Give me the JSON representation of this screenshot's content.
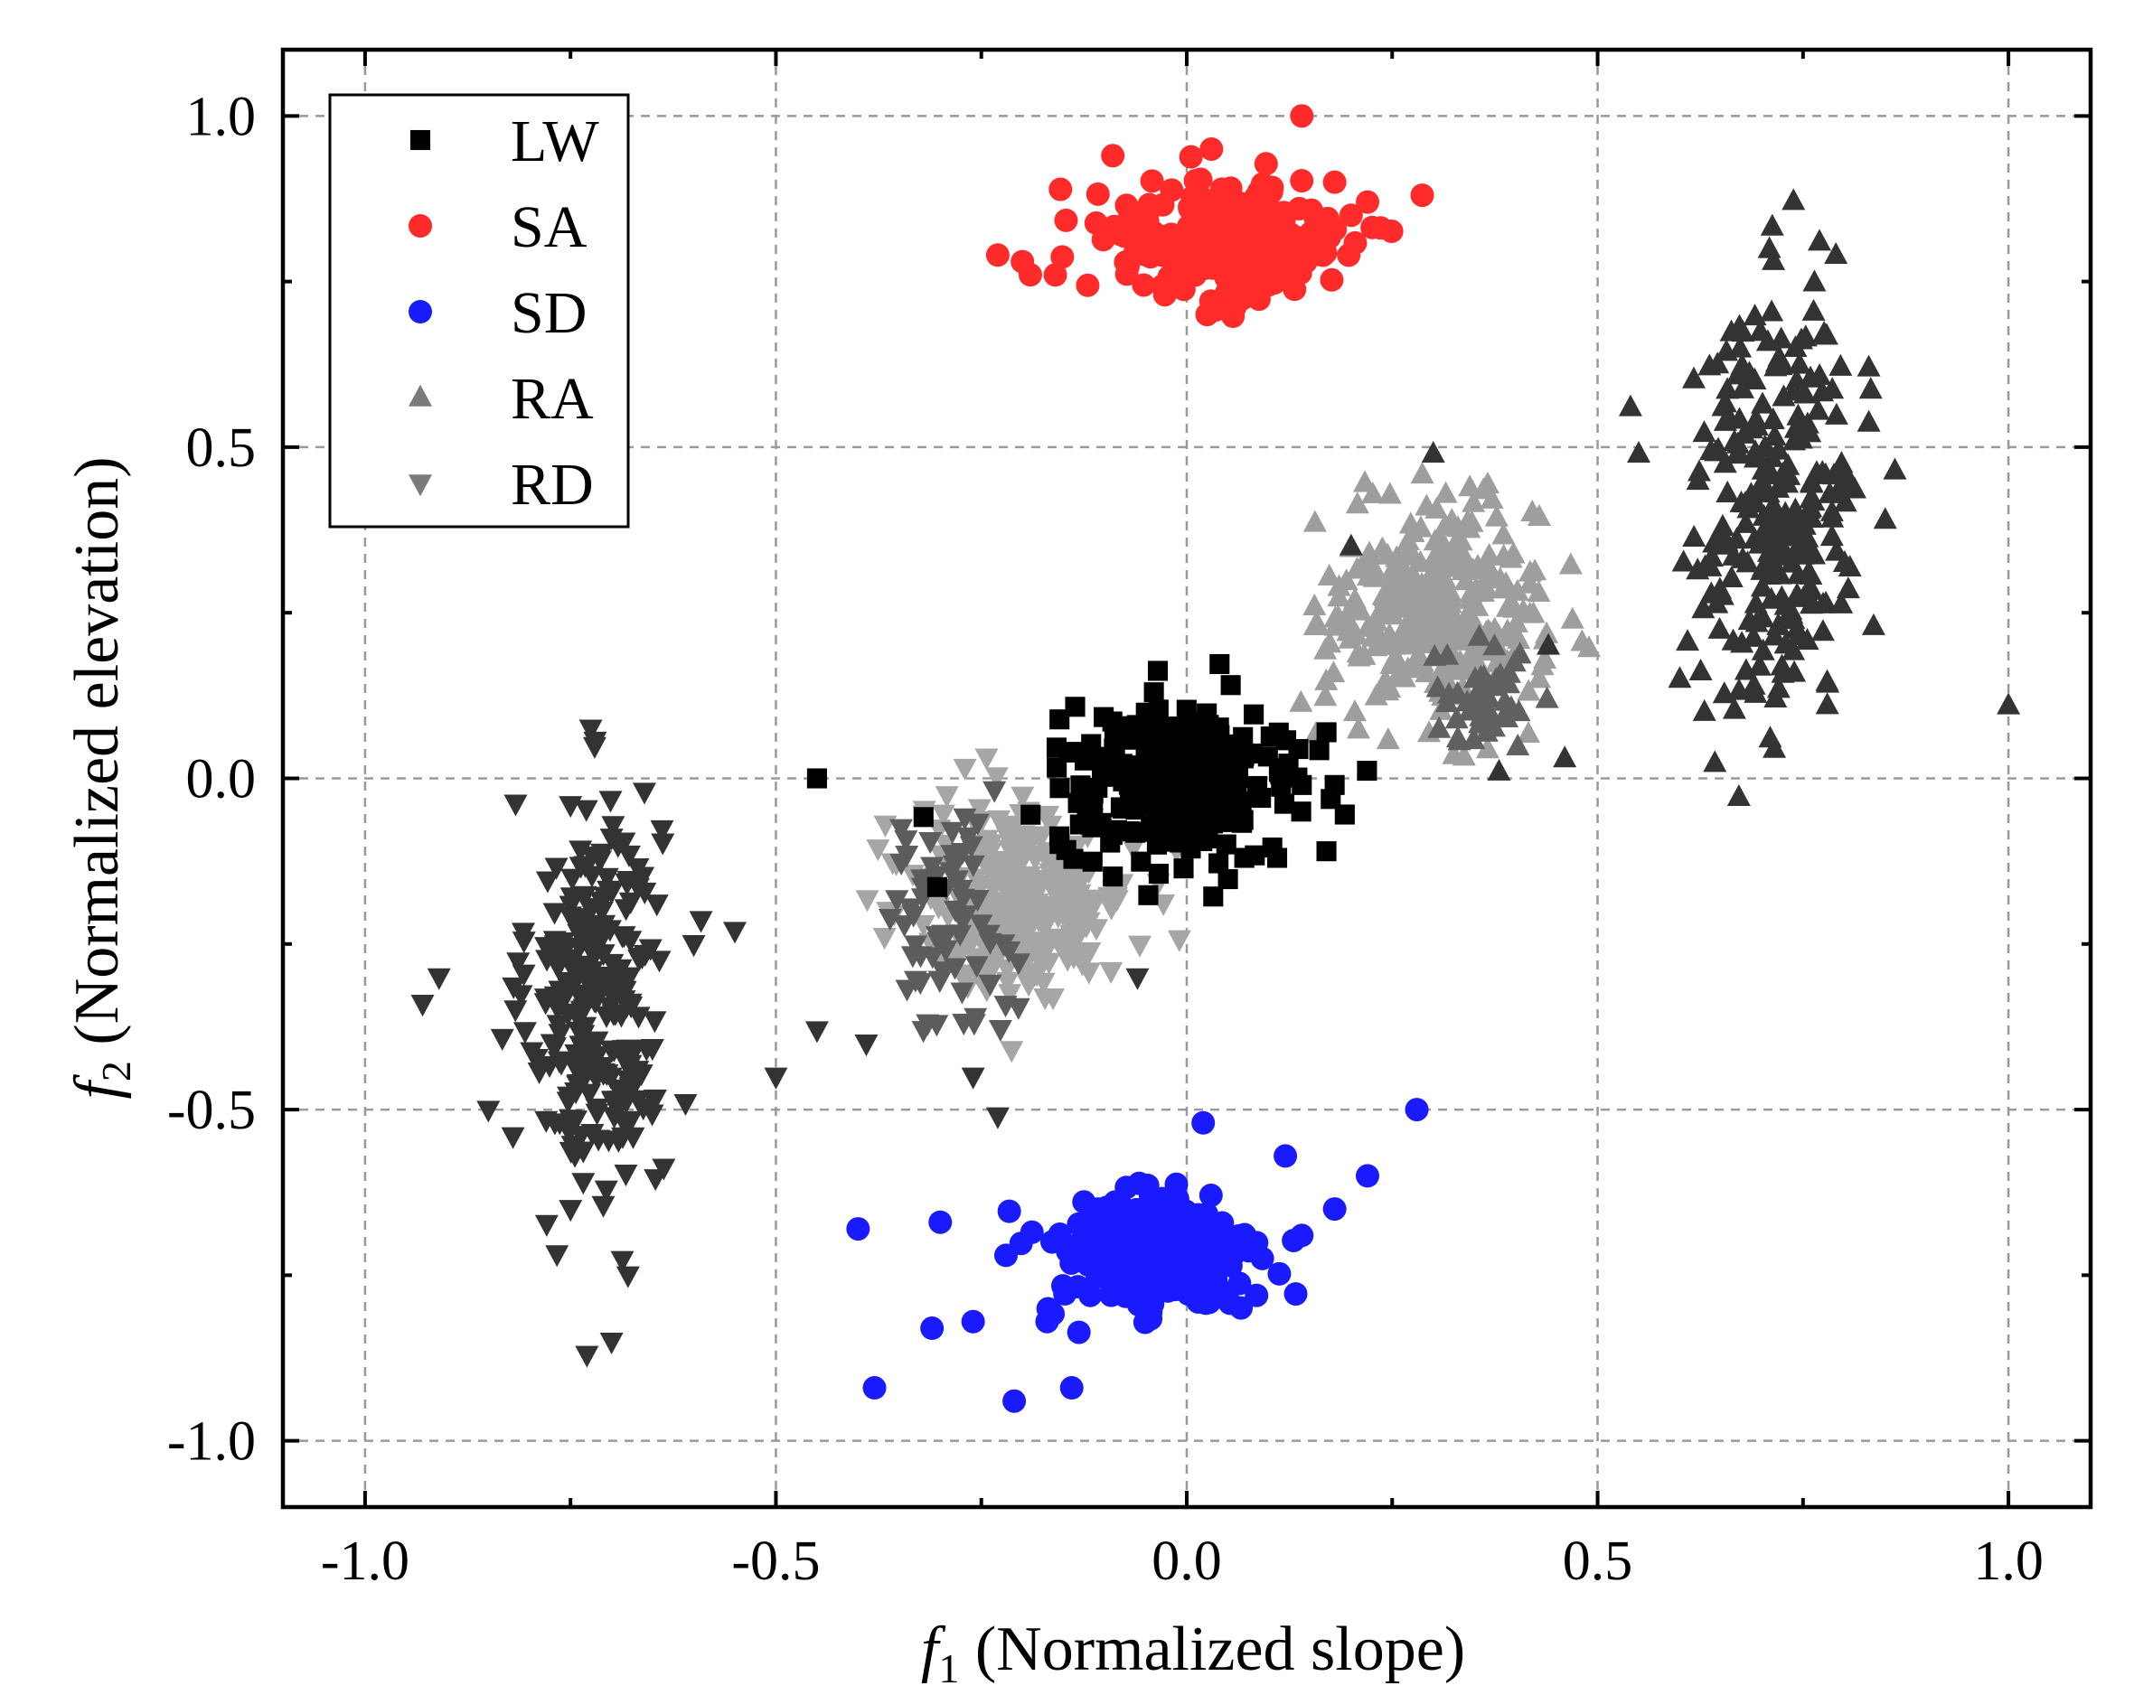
{
  "chart_data": {
    "type": "scatter",
    "title": "",
    "xlabel_italic": "f",
    "xlabel_sub": "1",
    "xlabel_rest": " (Normalized slope)",
    "ylabel_italic": "f",
    "ylabel_sub": "2",
    "ylabel_rest": " (Normalized elevation)",
    "xlim": [
      -1.1,
      1.1
    ],
    "ylim": [
      -1.1,
      1.1
    ],
    "xticks": [
      -1.0,
      -0.5,
      0.0,
      0.5,
      1.0
    ],
    "yticks": [
      -1.0,
      -0.5,
      0.0,
      0.5,
      1.0
    ],
    "xtick_labels": [
      "-1.0",
      "-0.5",
      "0.0",
      "0.5",
      "1.0"
    ],
    "ytick_labels": [
      "-1.0",
      "-0.5",
      "0.0",
      "0.5",
      "1.0"
    ],
    "grid": true,
    "legend_position": "top-left",
    "series": [
      {
        "name": "LW",
        "marker": "square",
        "color": "#000000",
        "clusters": [
          {
            "center": [
              -0.01,
              -0.01
            ],
            "spread": [
              0.075,
              0.055
            ],
            "count": 260
          }
        ],
        "points": [
          [
            -0.45,
            0.0
          ],
          [
            0.17,
            -0.11
          ],
          [
            0.11,
            -0.12
          ],
          [
            -0.04,
            0.13
          ],
          [
            0.14,
            -0.01
          ],
          [
            0.18,
            -0.01
          ],
          [
            -0.14,
            0.04
          ],
          [
            0.07,
            -0.12
          ]
        ]
      },
      {
        "name": "SA",
        "marker": "circle",
        "color": "#ff2a2a",
        "clusters": [
          {
            "center": [
              0.05,
              0.81
            ],
            "spread": [
              0.075,
              0.05
            ],
            "count": 230
          }
        ],
        "points": [
          [
            -0.23,
            0.79
          ],
          [
            -0.2,
            0.78
          ],
          [
            -0.16,
            0.76
          ],
          [
            0.14,
            1.0
          ],
          [
            0.2,
            0.85
          ],
          [
            0.22,
            0.87
          ],
          [
            -0.09,
            0.94
          ],
          [
            0.03,
            0.95
          ],
          [
            0.18,
            0.9
          ]
        ]
      },
      {
        "name": "SD",
        "marker": "circle",
        "color": "#1a1aff",
        "clusters": [
          {
            "center": [
              -0.04,
              -0.72
            ],
            "spread": [
              0.065,
              0.05
            ],
            "count": 230
          }
        ],
        "points": [
          [
            -0.4,
            -0.68
          ],
          [
            -0.38,
            -0.92
          ],
          [
            -0.3,
            -0.67
          ],
          [
            -0.31,
            -0.83
          ],
          [
            -0.26,
            -0.82
          ],
          [
            -0.21,
            -0.94
          ],
          [
            -0.14,
            -0.92
          ],
          [
            -0.22,
            -0.72
          ],
          [
            0.28,
            -0.5
          ],
          [
            0.22,
            -0.6
          ],
          [
            0.18,
            -0.65
          ],
          [
            0.14,
            -0.69
          ],
          [
            0.02,
            -0.52
          ],
          [
            0.12,
            -0.57
          ],
          [
            -0.17,
            -0.82
          ]
        ]
      },
      {
        "name": "RA",
        "marker": "triangle-up",
        "colors": [
          "#333333",
          "#9e9e9e"
        ],
        "clusters": [
          {
            "center": [
              0.72,
              0.42
            ],
            "spread": [
              0.05,
              0.16
            ],
            "count": 260,
            "color": "#333333"
          },
          {
            "center": [
              0.3,
              0.25
            ],
            "spread": [
              0.065,
              0.08
            ],
            "count": 320,
            "color": "#9e9e9e"
          },
          {
            "center": [
              0.36,
              0.12
            ],
            "spread": [
              0.03,
              0.04
            ],
            "count": 45,
            "color": "#606060"
          }
        ],
        "points": [
          [
            1.0,
            0.11
          ],
          [
            0.54,
            0.56
          ],
          [
            0.55,
            0.49
          ],
          [
            0.83,
            0.62
          ],
          [
            0.85,
            0.39
          ],
          [
            0.77,
            0.81
          ],
          [
            0.79,
            0.79
          ],
          [
            0.6,
            0.15
          ],
          [
            0.46,
            0.03
          ],
          [
            0.38,
            0.01
          ],
          [
            0.71,
            0.06
          ],
          [
            0.63,
            0.1
          ],
          [
            0.3,
            0.49
          ],
          [
            0.2,
            0.35
          ],
          [
            0.44,
            0.2
          ]
        ]
      },
      {
        "name": "RD",
        "marker": "triangle-down",
        "colors": [
          "#333333",
          "#a6a6a6"
        ],
        "clusters": [
          {
            "center": [
              -0.72,
              -0.33
            ],
            "spread": [
              0.04,
              0.15
            ],
            "count": 260,
            "color": "#333333"
          },
          {
            "center": [
              -0.2,
              -0.18
            ],
            "spread": [
              0.065,
              0.07
            ],
            "count": 330,
            "color": "#a6a6a6"
          },
          {
            "center": [
              -0.29,
              -0.22
            ],
            "spread": [
              0.04,
              0.08
            ],
            "count": 70,
            "color": "#5c5c5c"
          }
        ],
        "points": [
          [
            -0.73,
            -0.87
          ],
          [
            -0.7,
            -0.85
          ],
          [
            -0.68,
            -0.75
          ],
          [
            -0.93,
            -0.34
          ],
          [
            -0.91,
            -0.3
          ],
          [
            -0.85,
            -0.5
          ],
          [
            -0.82,
            -0.54
          ],
          [
            -0.6,
            -0.25
          ],
          [
            -0.61,
            -0.49
          ],
          [
            -0.5,
            -0.45
          ],
          [
            -0.55,
            -0.23
          ],
          [
            -0.45,
            -0.38
          ],
          [
            -0.23,
            -0.51
          ],
          [
            -0.26,
            -0.45
          ],
          [
            -0.39,
            -0.4
          ],
          [
            -0.06,
            -0.3
          ],
          [
            -0.66,
            -0.02
          ],
          [
            -0.75,
            -0.04
          ],
          [
            -0.02,
            -0.02
          ]
        ]
      }
    ]
  }
}
